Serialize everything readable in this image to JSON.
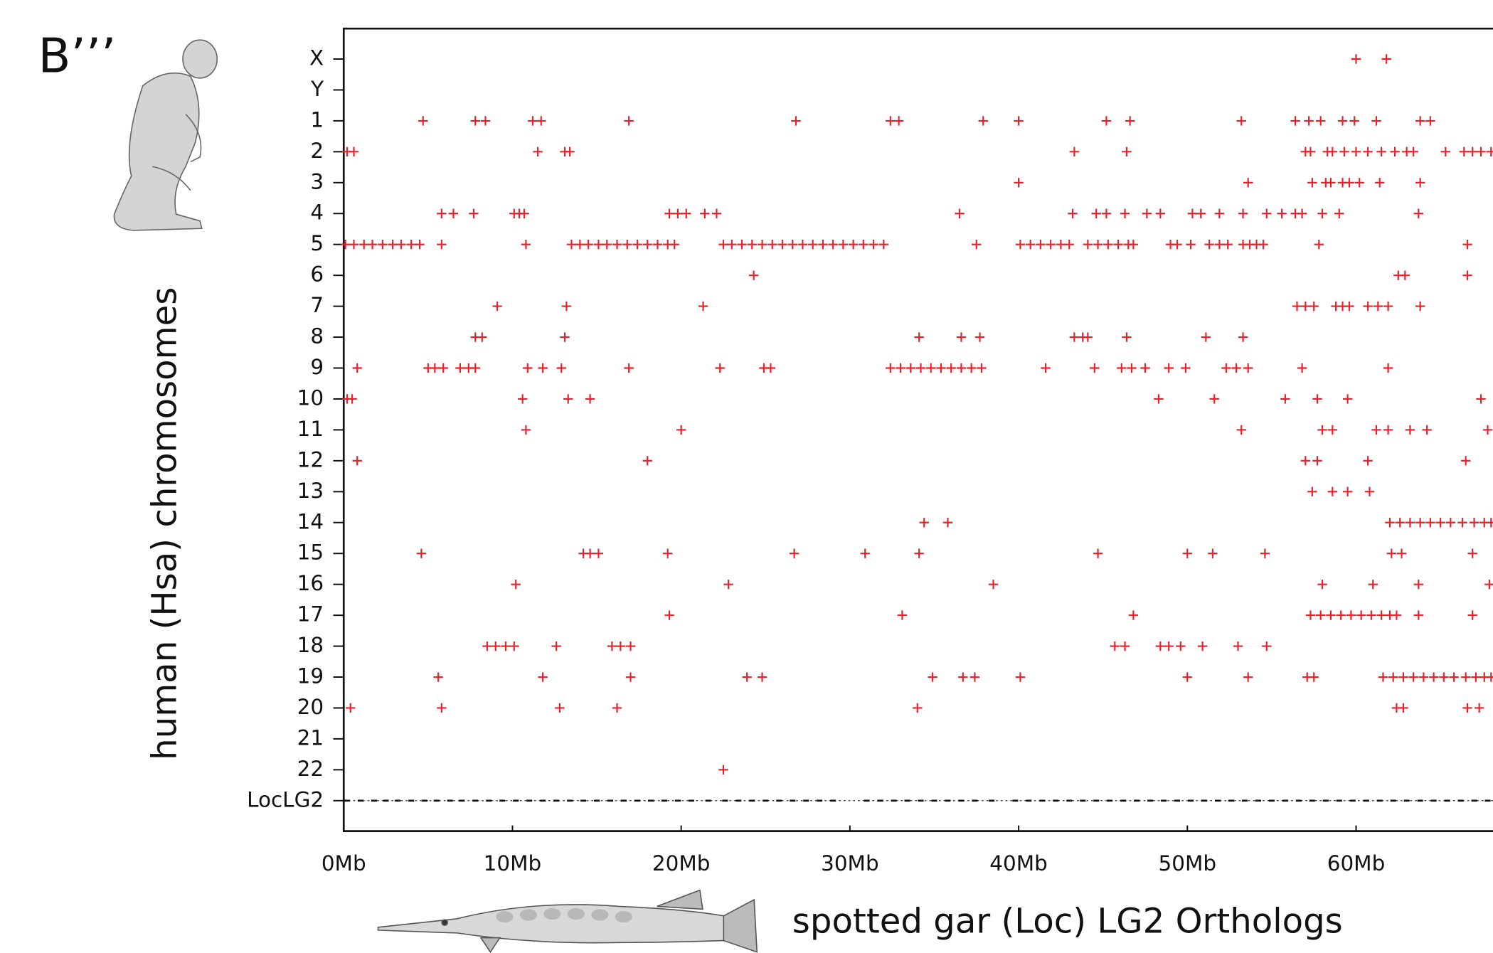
{
  "panel_label": "B’’’",
  "chart_data": {
    "type": "dotplot",
    "x_label": "spotted gar (Loc) LG2 Orthologs",
    "y_label": "human (Hsa) chromosomes",
    "xlim": [
      0,
      68.1
    ],
    "xticks": [
      {
        "value": 0,
        "label": "0Mb"
      },
      {
        "value": 10,
        "label": "10Mb"
      },
      {
        "value": 20,
        "label": "20Mb"
      },
      {
        "value": 30,
        "label": "30Mb"
      },
      {
        "value": 40,
        "label": "40Mb"
      },
      {
        "value": 50,
        "label": "50Mb"
      },
      {
        "value": 60,
        "label": "60Mb"
      }
    ],
    "series": [
      {
        "name": "X",
        "color": "#e8202a",
        "x": [
          60.0,
          61.8
        ]
      },
      {
        "name": "Y",
        "color": "#e8202a",
        "x": []
      },
      {
        "name": "1",
        "color": "#e8202a",
        "x": [
          4.7,
          7.8,
          8.4,
          11.2,
          11.7,
          16.9,
          26.8,
          32.4,
          32.9,
          37.9,
          40.0,
          45.2,
          46.6,
          53.2,
          56.4,
          57.2,
          57.9,
          59.2,
          59.9,
          61.2,
          63.8,
          64.4
        ]
      },
      {
        "name": "2",
        "color": "#e8202a",
        "x": [
          0.2,
          0.6,
          11.5,
          13.1,
          13.4,
          43.3,
          46.4,
          57.0,
          57.3,
          58.3,
          58.6,
          59.3,
          60.0,
          60.7,
          61.5,
          62.3,
          63.0,
          63.4,
          65.3,
          66.4,
          66.9,
          67.4,
          68.0
        ]
      },
      {
        "name": "3",
        "color": "#e8202a",
        "x": [
          40.0,
          53.6,
          57.4,
          58.2,
          58.5,
          59.2,
          59.6,
          60.2,
          61.4,
          63.8
        ]
      },
      {
        "name": "4",
        "color": "#e8202a",
        "x": [
          5.8,
          6.5,
          7.7,
          10.1,
          10.4,
          10.7,
          19.3,
          19.8,
          20.3,
          21.4,
          22.1,
          36.5,
          43.2,
          44.6,
          45.2,
          46.3,
          47.6,
          48.4,
          50.3,
          50.8,
          51.9,
          53.3,
          54.7,
          55.6,
          56.4,
          56.8,
          58.0,
          59.0,
          63.7
        ]
      },
      {
        "name": "5",
        "color": "#e8202a",
        "x": [
          0.1,
          0.6,
          1.2,
          1.7,
          2.3,
          2.9,
          3.4,
          4.0,
          4.5,
          5.8,
          10.8,
          13.5,
          14.0,
          14.5,
          15.1,
          15.6,
          16.2,
          16.8,
          17.4,
          18.0,
          18.6,
          19.2,
          19.6,
          22.5,
          23.0,
          23.6,
          24.2,
          24.8,
          25.4,
          26.0,
          26.6,
          27.2,
          27.8,
          28.4,
          29.0,
          29.6,
          30.2,
          30.8,
          31.4,
          32.0,
          37.5,
          40.1,
          40.7,
          41.3,
          41.9,
          42.5,
          43.0,
          44.1,
          44.7,
          45.3,
          45.9,
          46.5,
          46.8,
          49.0,
          49.4,
          50.2,
          51.3,
          51.9,
          52.4,
          53.3,
          53.7,
          54.1,
          54.5,
          57.8,
          66.6
        ]
      },
      {
        "name": "6",
        "color": "#e8202a",
        "x": [
          24.3,
          62.5,
          62.9,
          66.6
        ]
      },
      {
        "name": "7",
        "color": "#e8202a",
        "x": [
          9.1,
          13.2,
          21.3,
          56.5,
          57.0,
          57.5,
          58.8,
          59.2,
          59.6,
          60.7,
          61.3,
          61.9,
          63.8
        ]
      },
      {
        "name": "8",
        "color": "#e8202a",
        "x": [
          7.8,
          8.2,
          13.1,
          34.1,
          36.6,
          37.7,
          43.3,
          43.8,
          44.1,
          46.4,
          51.1,
          53.3
        ]
      },
      {
        "name": "9",
        "color": "#e8202a",
        "x": [
          0.8,
          5.0,
          5.4,
          5.9,
          6.9,
          7.4,
          7.8,
          10.9,
          11.8,
          12.9,
          16.9,
          22.3,
          24.9,
          25.3,
          32.4,
          33.0,
          33.6,
          34.2,
          34.8,
          35.4,
          36.0,
          36.6,
          37.2,
          37.8,
          41.6,
          44.5,
          46.1,
          46.7,
          47.5,
          48.9,
          49.9,
          52.3,
          52.9,
          53.6,
          56.8,
          61.9
        ]
      },
      {
        "name": "10",
        "color": "#e8202a",
        "x": [
          0.2,
          0.5,
          10.6,
          13.3,
          14.6,
          48.3,
          51.6,
          55.8,
          57.7,
          59.5,
          67.4
        ]
      },
      {
        "name": "11",
        "color": "#e8202a",
        "x": [
          10.8,
          20.0,
          53.2,
          58.0,
          58.6,
          61.2,
          61.9,
          63.2,
          64.2,
          67.8
        ]
      },
      {
        "name": "12",
        "color": "#e8202a",
        "x": [
          0.8,
          18.0,
          57.0,
          57.7,
          60.7,
          66.5
        ]
      },
      {
        "name": "13",
        "color": "#e8202a",
        "x": [
          57.4,
          58.6,
          59.5,
          60.8
        ]
      },
      {
        "name": "14",
        "color": "#e8202a",
        "x": [
          34.4,
          35.8,
          62.0,
          62.6,
          63.2,
          63.8,
          64.4,
          65.0,
          65.6,
          66.3,
          67.0,
          67.6,
          68.0
        ]
      },
      {
        "name": "15",
        "color": "#e8202a",
        "x": [
          4.6,
          14.2,
          14.6,
          15.1,
          19.2,
          26.7,
          30.9,
          34.1,
          44.7,
          50.0,
          51.5,
          54.6,
          62.1,
          62.7,
          66.9
        ]
      },
      {
        "name": "16",
        "color": "#e8202a",
        "x": [
          10.2,
          22.8,
          38.5,
          58.0,
          61.0,
          63.7,
          67.9
        ]
      },
      {
        "name": "17",
        "color": "#e8202a",
        "x": [
          19.3,
          33.1,
          46.8,
          57.3,
          57.9,
          58.5,
          59.1,
          59.7,
          60.3,
          60.9,
          61.5,
          62.0,
          62.4,
          63.7,
          66.9
        ]
      },
      {
        "name": "18",
        "color": "#e8202a",
        "x": [
          8.5,
          9.0,
          9.6,
          10.1,
          12.6,
          15.9,
          16.4,
          17.0,
          45.7,
          46.3,
          48.4,
          48.9,
          49.6,
          50.9,
          53.0,
          54.7
        ]
      },
      {
        "name": "19",
        "color": "#e8202a",
        "x": [
          5.6,
          11.8,
          17.0,
          23.9,
          24.8,
          34.9,
          36.7,
          37.4,
          40.1,
          50.0,
          53.6,
          57.1,
          57.5,
          61.6,
          62.2,
          62.8,
          63.4,
          64.0,
          64.6,
          65.2,
          65.8,
          66.5,
          67.1,
          67.6,
          68.0
        ]
      },
      {
        "name": "20",
        "color": "#e8202a",
        "x": [
          0.4,
          5.8,
          12.8,
          16.2,
          34.0,
          62.4,
          62.8,
          66.6,
          67.3
        ]
      },
      {
        "name": "21",
        "color": "#e8202a",
        "x": []
      },
      {
        "name": "22",
        "color": "#e8202a",
        "x": [
          22.5
        ]
      },
      {
        "name": "LocLG2",
        "color": "#111111",
        "x": [
          0.2,
          1.0,
          1.8,
          2.5,
          3.2,
          4.0,
          4.8,
          5.5,
          6.3,
          7.0,
          7.8,
          8.6,
          9.4,
          10.2,
          11.0,
          11.8,
          12.6,
          13.4,
          14.2,
          15.0,
          15.8,
          16.6,
          17.4,
          18.2,
          19.0,
          19.8,
          20.6,
          21.6,
          22.6,
          23.4,
          24.2,
          25.0,
          25.8,
          26.6,
          27.4,
          28.2,
          29.0,
          31.0,
          31.8,
          32.6,
          33.4,
          34.2,
          35.0,
          35.8,
          36.6,
          37.4,
          38.4,
          39.8,
          40.6,
          41.4,
          42.2,
          43.0,
          43.8,
          44.6,
          45.4,
          46.2,
          47.0,
          47.8,
          48.6,
          49.4,
          50.2,
          51.0,
          51.8,
          52.6,
          53.4,
          54.2,
          55.0,
          55.8,
          56.6,
          57.4,
          58.2,
          59.0,
          59.8,
          60.6,
          61.4,
          62.2,
          63.0,
          63.8,
          64.6,
          65.4,
          66.2,
          67.0,
          67.8
        ]
      }
    ]
  }
}
